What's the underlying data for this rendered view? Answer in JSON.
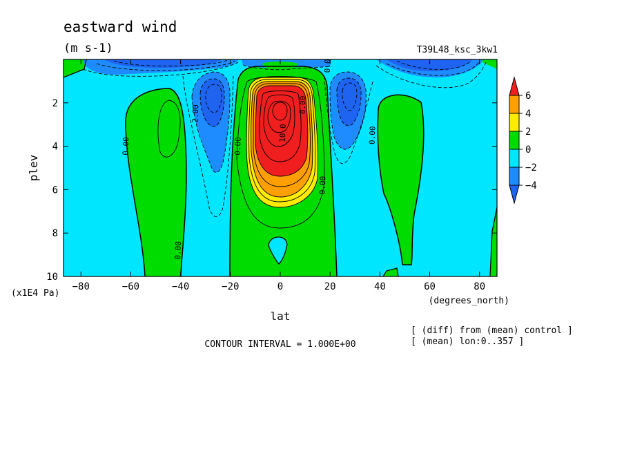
{
  "figure": {
    "title": "eastward wind",
    "units": "(m s-1)",
    "run_name": "T39L48_ksc_3kw1",
    "contour_interval": "CONTOUR INTERVAL = 1.000E+00",
    "note_diff": "[ (diff) from (mean) control ]",
    "note_mean": "[ (mean) lon:0..357 ]",
    "colors": {
      "minus6": "#1e64f0",
      "minus4": "#1e8cff",
      "minus2": "#00e6ff",
      "zero": "#00dc00",
      "plus2": "#ffeb00",
      "plus4": "#ffa000",
      "plus6": "#f01e1e"
    }
  },
  "chart_data": {
    "type": "contour",
    "variable": "eastward wind",
    "units": "m s-1",
    "x_name": "lat",
    "x_unit": "(degrees_north)",
    "y_name": "plev",
    "y_unit": "(x1E4 Pa)",
    "xlim": [
      -87,
      87
    ],
    "ylim": [
      10,
      0
    ],
    "x_ticks": [
      -80,
      -60,
      -40,
      -20,
      0,
      20,
      40,
      60,
      80
    ],
    "x_tick_labels": [
      "−80",
      "−60",
      "−40",
      "−20",
      "0",
      "20",
      "40",
      "60",
      "80"
    ],
    "y_ticks": [
      2,
      4,
      6,
      8,
      10
    ],
    "y_tick_labels": [
      "2",
      "4",
      "6",
      "8",
      "10"
    ],
    "contour_interval": 1.0,
    "colorbar": {
      "levels": [
        -4,
        -2,
        0,
        2,
        4,
        6
      ],
      "labels": [
        "−4",
        "−2",
        "0",
        "2",
        "4",
        "6"
      ],
      "colors": [
        "#1e64f0",
        "#1e8cff",
        "#00e6ff",
        "#00dc00",
        "#ffeb00",
        "#ffa000",
        "#f01e1e"
      ]
    },
    "contour_labels": [
      {
        "text": "0.00",
        "lat": -61,
        "plev": 4.0
      },
      {
        "text": "0.00",
        "lat": -40,
        "plev": 8.8
      },
      {
        "text": "2.00",
        "lat": -33,
        "plev": 2.5
      },
      {
        "text": "0.00",
        "lat": -16,
        "plev": 4.0
      },
      {
        "text": "10.0",
        "lat": 2,
        "plev": 3.4
      },
      {
        "text": "8.00",
        "lat": 10,
        "plev": 2.1
      },
      {
        "text": "0.00",
        "lat": 18,
        "plev": 5.8
      },
      {
        "text": "0.00",
        "lat": 38,
        "plev": 3.5
      },
      {
        "text": "0.00",
        "lat": 20,
        "plev": 0.2
      }
    ],
    "features": [
      {
        "kind": "jet",
        "lat": 0,
        "plev": 2.2,
        "max_approx": 10
      },
      {
        "kind": "min",
        "lat": -27,
        "plev": 2.2,
        "min_approx": -5
      },
      {
        "kind": "min",
        "lat": 26,
        "plev": 2.0,
        "min_approx": -5
      },
      {
        "kind": "max",
        "lat": -45,
        "plev": 4.0,
        "max_approx": 1
      },
      {
        "kind": "max",
        "lat": 52,
        "plev": 4.0,
        "max_approx": 1
      }
    ]
  }
}
